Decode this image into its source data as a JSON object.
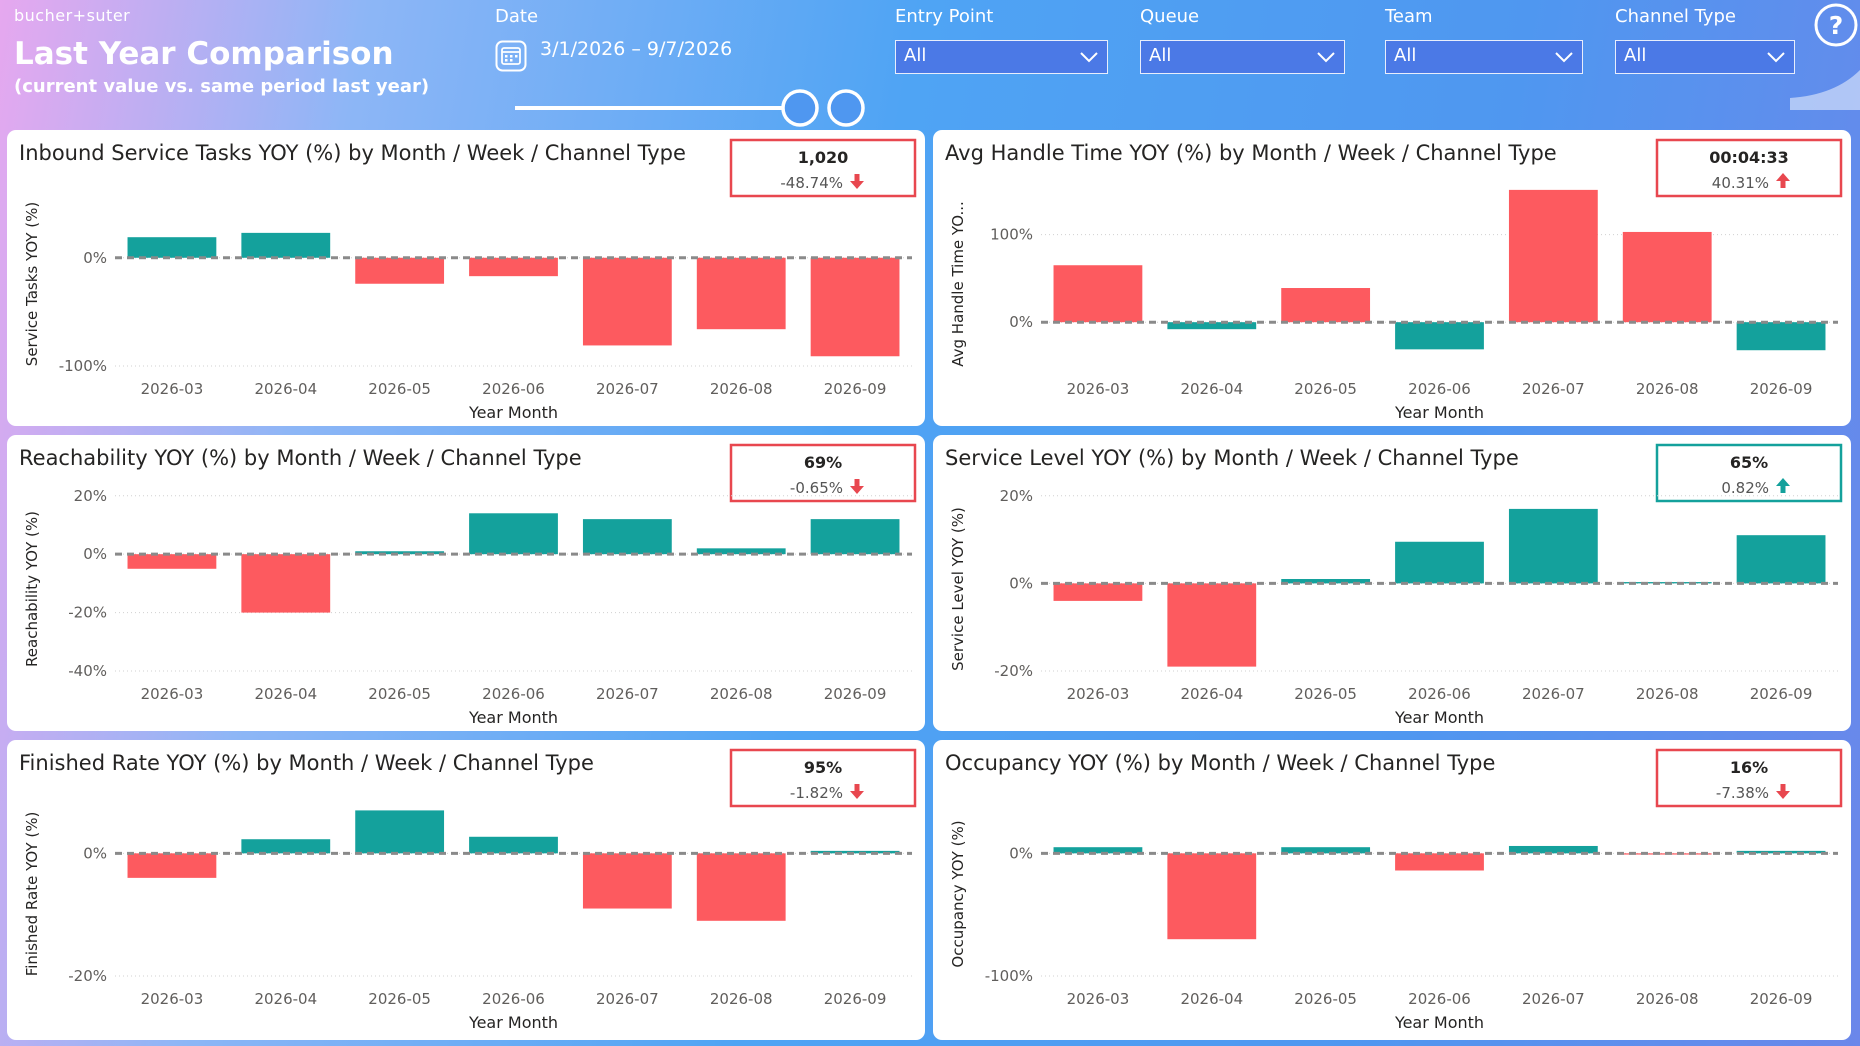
{
  "header": {
    "logo": "bucher+suter",
    "title": "Last Year Comparison",
    "subtitle": "(current value vs. same period last year)"
  },
  "date_filter": {
    "label": "Date",
    "range": "3/1/2026 – 9/7/2026"
  },
  "filters": [
    {
      "label": "Entry Point",
      "value": "All"
    },
    {
      "label": "Queue",
      "value": "All"
    },
    {
      "label": "Team",
      "value": "All"
    },
    {
      "label": "Channel Type",
      "value": "All"
    }
  ],
  "chart_data": [
    {
      "type": "bar",
      "title": "Inbound Service Tasks YOY (%) by Month / Week / Channel Type",
      "categories": [
        "2026-03",
        "2026-04",
        "2026-05",
        "2026-06",
        "2026-07",
        "2026-08",
        "2026-09"
      ],
      "values": [
        19,
        23,
        -24,
        -17,
        -81,
        -66,
        -91
      ],
      "colors": [
        "#14a19c",
        "#14a19c",
        "#fd5a5f",
        "#fd5a5f",
        "#fd5a5f",
        "#fd5a5f",
        "#fd5a5f"
      ],
      "x_label": "Year Month",
      "y_label": "Service Tasks YOY (%)",
      "ylim": [
        -100,
        70
      ],
      "yticks": [
        {
          "value": -100,
          "label": "-100%"
        },
        {
          "value": 0,
          "label": "0%"
        }
      ],
      "kpi": {
        "value": "1,020",
        "change": "-48.74%",
        "color": "#e8474f"
      }
    },
    {
      "type": "bar",
      "title": "Avg Handle Time YOY (%) by Month / Week / Channel Type",
      "categories": [
        "2026-03",
        "2026-04",
        "2026-05",
        "2026-06",
        "2026-07",
        "2026-08",
        "2026-09"
      ],
      "values": [
        65,
        -8,
        39,
        -31,
        151,
        103,
        -32
      ],
      "colors": [
        "#fd5a5f",
        "#14a19c",
        "#fd5a5f",
        "#14a19c",
        "#fd5a5f",
        "#fd5a5f",
        "#14a19c"
      ],
      "x_label": "Year Month",
      "y_label": "Avg Handle Time YO...",
      "ylim": [
        -50,
        160
      ],
      "yticks": [
        {
          "value": 0,
          "label": "0%"
        },
        {
          "value": 100,
          "label": "100%"
        }
      ],
      "kpi": {
        "value": "00:04:33",
        "change": "40.31%",
        "color": "#e8474f"
      }
    },
    {
      "type": "bar",
      "title": "Reachability YOY (%) by Month / Week / Channel Type",
      "categories": [
        "2026-03",
        "2026-04",
        "2026-05",
        "2026-06",
        "2026-07",
        "2026-08",
        "2026-09"
      ],
      "values": [
        -5,
        -20,
        1,
        14,
        12,
        2,
        12
      ],
      "colors": [
        "#fd5a5f",
        "#fd5a5f",
        "#14a19c",
        "#14a19c",
        "#14a19c",
        "#14a19c",
        "#14a19c"
      ],
      "x_label": "Year Month",
      "y_label": "Reachability YOY (%)",
      "ylim": [
        -40,
        23
      ],
      "yticks": [
        {
          "value": -40,
          "label": "-40%"
        },
        {
          "value": -20,
          "label": "-20%"
        },
        {
          "value": 0,
          "label": "0%"
        },
        {
          "value": 20,
          "label": "20%"
        }
      ],
      "kpi": {
        "value": "69%",
        "change": "-0.65%",
        "color": "#e8474f"
      }
    },
    {
      "type": "bar",
      "title": "Service Level YOY (%) by Month / Week / Channel Type",
      "categories": [
        "2026-03",
        "2026-04",
        "2026-05",
        "2026-06",
        "2026-07",
        "2026-08",
        "2026-09"
      ],
      "values": [
        -4,
        -19,
        1,
        9.5,
        17,
        0.3,
        11
      ],
      "colors": [
        "#fd5a5f",
        "#fd5a5f",
        "#14a19c",
        "#14a19c",
        "#14a19c",
        "#14a19c",
        "#14a19c"
      ],
      "x_label": "Year Month",
      "y_label": "Service Level YOY (%)",
      "ylim": [
        -20,
        22
      ],
      "yticks": [
        {
          "value": -20,
          "label": "-20%"
        },
        {
          "value": 0,
          "label": "0%"
        },
        {
          "value": 20,
          "label": "20%"
        }
      ],
      "kpi": {
        "value": "65%",
        "change": "0.82%",
        "color": "#14a19c"
      }
    },
    {
      "type": "bar",
      "title": "Finished Rate YOY (%) by Month / Week / Channel Type",
      "categories": [
        "2026-03",
        "2026-04",
        "2026-05",
        "2026-06",
        "2026-07",
        "2026-08",
        "2026-09"
      ],
      "values": [
        -4,
        2.3,
        7,
        2.7,
        -9,
        -11,
        0.4
      ],
      "colors": [
        "#fd5a5f",
        "#14a19c",
        "#14a19c",
        "#14a19c",
        "#fd5a5f",
        "#fd5a5f",
        "#14a19c"
      ],
      "x_label": "Year Month",
      "y_label": "Finished Rate YOY (%)",
      "ylim": [
        -20,
        10
      ],
      "yticks": [
        {
          "value": -20,
          "label": "-20%"
        },
        {
          "value": 0,
          "label": "0%"
        }
      ],
      "kpi": {
        "value": "95%",
        "change": "-1.82%",
        "color": "#e8474f"
      }
    },
    {
      "type": "bar",
      "title": "Occupancy YOY (%) by Month / Week / Channel Type",
      "categories": [
        "2026-03",
        "2026-04",
        "2026-05",
        "2026-06",
        "2026-07",
        "2026-08",
        "2026-09"
      ],
      "values": [
        5,
        -70,
        5,
        -14,
        6,
        -1,
        2
      ],
      "colors": [
        "#14a19c",
        "#fd5a5f",
        "#14a19c",
        "#fd5a5f",
        "#14a19c",
        "#fd5a5f",
        "#14a19c"
      ],
      "x_label": "Year Month",
      "y_label": "Occupancy YOY (%)",
      "ylim": [
        -100,
        50
      ],
      "yticks": [
        {
          "value": -100,
          "label": "-100%"
        },
        {
          "value": 0,
          "label": "0%"
        }
      ],
      "kpi": {
        "value": "16%",
        "change": "-7.38%",
        "color": "#e8474f"
      }
    }
  ]
}
